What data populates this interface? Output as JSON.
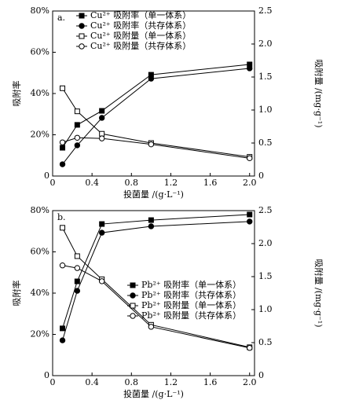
{
  "chart_data": [
    {
      "type": "line",
      "panel_label": "a.",
      "x_label": "投菌量 /(g·L⁻¹)",
      "y_label": "吸附率",
      "y2_label": "吸附量 /(mg·g⁻¹)",
      "x": [
        0.1,
        0.25,
        0.5,
        1.0,
        2.0
      ],
      "xlim": [
        0,
        2.05
      ],
      "xticks": [
        0,
        0.4,
        0.8,
        1.2,
        1.6,
        {
          "value": 2,
          "label": "2.0"
        }
      ],
      "ylim": [
        0,
        80
      ],
      "yticks": [
        0,
        {
          "value": 20,
          "label": "20%"
        },
        {
          "value": 40,
          "label": "40%"
        },
        {
          "value": 60,
          "label": "60%"
        },
        {
          "value": 80,
          "label": "80%"
        }
      ],
      "y2lim": [
        0,
        2.5
      ],
      "y2ticks": [
        0,
        0.5,
        {
          "value": 1,
          "label": "1.0"
        },
        1.5,
        {
          "value": 2,
          "label": "2.0"
        },
        2.5
      ],
      "legend": "upper left",
      "series": [
        {
          "name": "Cu²⁺ 吸附率（单一体系）",
          "color": "#000000",
          "marker": "square",
          "filled": true,
          "values": [
            13.7,
            24.8,
            31.6,
            49.1,
            54.1
          ]
        },
        {
          "name": "Cu²⁺ 吸附率（共存体系）",
          "color": "#000000",
          "marker": "circle",
          "filled": true,
          "values": [
            5.7,
            14.9,
            28.2,
            47.2,
            52.2
          ]
        },
        {
          "name": "Cu²⁺ 吸附量（单一体系）",
          "color": "#000000",
          "marker": "square",
          "filled": false,
          "axis": "y2",
          "values": [
            1.33,
            0.98,
            0.64,
            0.5,
            0.29
          ]
        },
        {
          "name": "Cu²⁺ 吸附量（共存体系）",
          "color": "#000000",
          "marker": "circle",
          "filled": false,
          "axis": "y2",
          "values": [
            0.51,
            0.58,
            0.57,
            0.48,
            0.27
          ]
        }
      ]
    },
    {
      "type": "line",
      "panel_label": "b.",
      "x_label": "投菌量 /(g·L⁻¹)",
      "y_label": "吸附率",
      "y2_label": "吸附量 /(mg·g⁻¹)",
      "x": [
        0.1,
        0.25,
        0.5,
        1.0,
        2.0
      ],
      "xlim": [
        0,
        2.05
      ],
      "xticks": [
        0,
        0.4,
        0.8,
        1.2,
        1.6,
        {
          "value": 2,
          "label": "2.0"
        }
      ],
      "ylim": [
        0,
        80
      ],
      "yticks": [
        0,
        {
          "value": 20,
          "label": "20%"
        },
        {
          "value": 40,
          "label": "40%"
        },
        {
          "value": 60,
          "label": "60%"
        },
        {
          "value": 80,
          "label": "80%"
        }
      ],
      "y2lim": [
        0,
        2.5
      ],
      "y2ticks": [
        0,
        0.5,
        {
          "value": 1,
          "label": "1.0"
        },
        1.5,
        {
          "value": 2,
          "label": "2.0"
        },
        2.5
      ],
      "legend": "center right",
      "series": [
        {
          "name": "Pb²⁺ 吸附率（单一体系）",
          "color": "#000000",
          "marker": "square",
          "filled": true,
          "values": [
            22.9,
            45.7,
            73.5,
            75.4,
            78.1
          ]
        },
        {
          "name": "Pb²⁺ 吸附率（共存体系）",
          "color": "#000000",
          "marker": "circle",
          "filled": true,
          "values": [
            17.1,
            41.1,
            69.3,
            72.4,
            74.7
          ]
        },
        {
          "name": "Pb²⁺ 吸附量（单一体系）",
          "color": "#000000",
          "marker": "square",
          "filled": false,
          "axis": "y2",
          "values": [
            2.24,
            1.81,
            1.46,
            0.77,
            0.43
          ]
        },
        {
          "name": "Pb²⁺ 吸附量（共存体系）",
          "color": "#000000",
          "marker": "circle",
          "filled": false,
          "axis": "y2",
          "values": [
            1.67,
            1.63,
            1.43,
            0.74,
            0.42
          ]
        }
      ]
    }
  ]
}
